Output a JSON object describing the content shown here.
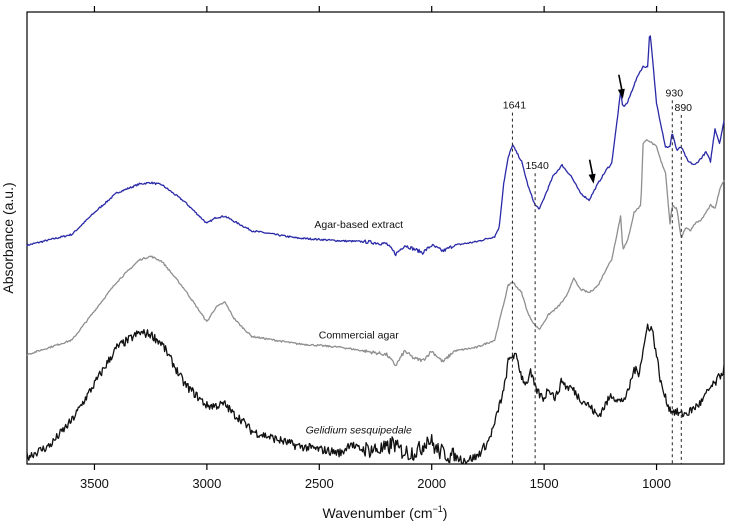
{
  "chart_data": {
    "type": "line",
    "title": "",
    "xlabel": "Wavenumber (cm",
    "xlabel_superscript": "−1",
    "xlabel_suffix": ")",
    "ylabel": "Absorbance (a.u.)",
    "x_reversed": true,
    "xlim": [
      3800,
      700
    ],
    "ylim": [
      0,
      6.2
    ],
    "grid": false,
    "legend": "none",
    "x_ticks": [
      3500,
      3000,
      2500,
      2000,
      1500,
      1000
    ],
    "x_tick_labels": [
      "3500",
      "3000",
      "2500",
      "2000",
      "1500",
      "1000"
    ],
    "series": [
      {
        "name": "Agar-based extract",
        "label_italic": false,
        "color": "#2a2aa8",
        "offset": 3.0,
        "noise": 0.012,
        "x": [
          3800,
          3600,
          3500,
          3400,
          3300,
          3250,
          3200,
          3100,
          3000,
          2960,
          2920,
          2880,
          2800,
          2600,
          2400,
          2300,
          2200,
          2160,
          2120,
          2080,
          2040,
          2000,
          1950,
          1900,
          1800,
          1720,
          1700,
          1680,
          1660,
          1641,
          1600,
          1570,
          1540,
          1520,
          1500,
          1460,
          1420,
          1400,
          1380,
          1340,
          1300,
          1260,
          1220,
          1200,
          1180,
          1160,
          1150,
          1130,
          1100,
          1080,
          1060,
          1040,
          1030,
          1000,
          960,
          940,
          930,
          910,
          890,
          860,
          830,
          800,
          780,
          760,
          740,
          720,
          700
        ],
        "y": [
          0.0,
          0.15,
          0.45,
          0.72,
          0.84,
          0.86,
          0.83,
          0.6,
          0.3,
          0.38,
          0.4,
          0.33,
          0.2,
          0.1,
          0.06,
          0.05,
          0.02,
          -0.12,
          0.0,
          -0.05,
          -0.1,
          0.0,
          -0.08,
          0.0,
          0.05,
          0.12,
          0.25,
          0.85,
          1.2,
          1.38,
          1.15,
          0.8,
          0.55,
          0.5,
          0.65,
          0.95,
          1.1,
          1.02,
          0.95,
          0.72,
          0.62,
          0.85,
          1.05,
          1.12,
          1.6,
          2.1,
          1.9,
          1.95,
          2.2,
          2.35,
          2.45,
          2.45,
          2.95,
          1.95,
          1.35,
          1.35,
          1.55,
          1.3,
          1.35,
          1.15,
          1.1,
          1.2,
          1.28,
          1.15,
          1.6,
          1.4,
          1.7
        ]
      },
      {
        "name": "Commercial agar",
        "label_italic": false,
        "color": "#8f8f8f",
        "offset": 1.5,
        "noise": 0.012,
        "x": [
          3800,
          3600,
          3500,
          3400,
          3300,
          3250,
          3200,
          3100,
          3000,
          2960,
          2920,
          2880,
          2850,
          2800,
          2600,
          2400,
          2300,
          2200,
          2160,
          2120,
          2080,
          2040,
          2000,
          1950,
          1900,
          1800,
          1720,
          1700,
          1660,
          1641,
          1600,
          1570,
          1540,
          1520,
          1480,
          1440,
          1400,
          1370,
          1340,
          1300,
          1260,
          1220,
          1200,
          1160,
          1150,
          1130,
          1100,
          1070,
          1060,
          1040,
          1000,
          980,
          960,
          940,
          930,
          910,
          890,
          870,
          850,
          830,
          800,
          780,
          760,
          740,
          720,
          700
        ],
        "y": [
          0.0,
          0.2,
          0.6,
          1.0,
          1.3,
          1.35,
          1.28,
          0.9,
          0.45,
          0.65,
          0.72,
          0.5,
          0.4,
          0.25,
          0.15,
          0.1,
          0.05,
          0.0,
          -0.15,
          0.05,
          -0.05,
          -0.08,
          0.05,
          -0.1,
          0.05,
          0.1,
          0.2,
          0.45,
          0.95,
          1.0,
          0.85,
          0.55,
          0.4,
          0.35,
          0.55,
          0.65,
          0.8,
          1.05,
          0.9,
          0.85,
          0.95,
          1.2,
          1.3,
          1.9,
          1.45,
          1.55,
          1.95,
          2.05,
          2.9,
          2.95,
          2.85,
          2.65,
          2.5,
          1.8,
          2.05,
          2.0,
          1.6,
          1.75,
          1.7,
          1.8,
          1.85,
          1.95,
          2.05,
          2.0,
          2.25,
          2.4
        ]
      },
      {
        "name": "Gelidium sesquipedale",
        "label_italic": true,
        "color": "#111111",
        "offset": 0.0,
        "noise": 0.06,
        "x": [
          3800,
          3700,
          3600,
          3500,
          3400,
          3300,
          3250,
          3200,
          3100,
          3000,
          2960,
          2920,
          2880,
          2850,
          2800,
          2700,
          2600,
          2500,
          2400,
          2360,
          2340,
          2300,
          2200,
          2170,
          2150,
          2100,
          2050,
          2020,
          2000,
          1980,
          1950,
          1900,
          1850,
          1800,
          1750,
          1720,
          1700,
          1680,
          1660,
          1641,
          1620,
          1600,
          1580,
          1560,
          1540,
          1520,
          1500,
          1480,
          1450,
          1420,
          1400,
          1380,
          1340,
          1300,
          1260,
          1240,
          1200,
          1160,
          1130,
          1100,
          1080,
          1060,
          1040,
          1020,
          1000,
          980,
          960,
          940,
          920,
          890,
          860,
          840,
          800,
          780,
          760,
          740,
          720,
          700
        ],
        "y": [
          0.1,
          0.25,
          0.6,
          1.1,
          1.6,
          1.8,
          1.78,
          1.65,
          1.1,
          0.8,
          0.8,
          0.82,
          0.68,
          0.62,
          0.45,
          0.35,
          0.25,
          0.2,
          0.15,
          0.3,
          0.22,
          0.2,
          0.2,
          0.3,
          0.2,
          0.15,
          0.2,
          0.35,
          0.3,
          0.2,
          0.15,
          0.1,
          0.05,
          0.1,
          0.3,
          0.55,
          0.8,
          1.0,
          1.4,
          1.5,
          1.45,
          1.2,
          1.1,
          1.25,
          1.05,
          0.95,
          0.9,
          1.05,
          0.9,
          1.15,
          1.05,
          1.05,
          0.9,
          0.8,
          0.65,
          0.75,
          0.95,
          0.85,
          0.95,
          1.3,
          1.25,
          1.55,
          1.9,
          1.85,
          1.5,
          1.1,
          0.9,
          0.75,
          0.72,
          0.68,
          0.7,
          0.75,
          0.85,
          0.95,
          1.05,
          1.1,
          1.2,
          1.3
        ]
      }
    ],
    "reference_lines": [
      {
        "x": 1641,
        "label": "1641"
      },
      {
        "x": 1540,
        "label": "1540"
      },
      {
        "x": 930,
        "label": "930"
      },
      {
        "x": 890,
        "label": "890"
      }
    ],
    "arrows": [
      {
        "x": 1150,
        "series": "Agar-based extract"
      },
      {
        "x": 1280,
        "series": "Agar-based extract"
      }
    ]
  }
}
